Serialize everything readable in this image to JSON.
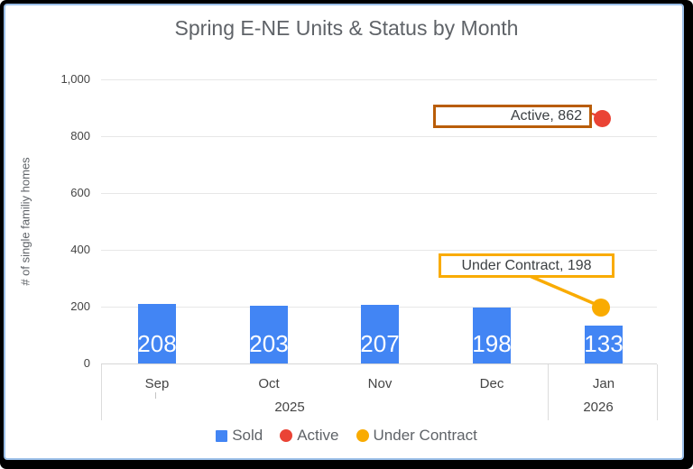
{
  "chart_data": {
    "type": "combo",
    "title": "Spring E-NE Units & Status by Month",
    "ylabel": "# of single familiy homes",
    "ylim": [
      0,
      1000
    ],
    "grid": true,
    "ytick_labels": [
      "1,000",
      "800",
      "600",
      "400",
      "200",
      "0"
    ],
    "categories": [
      "Sep",
      "Oct",
      "Nov",
      "Dec",
      "Jan"
    ],
    "year_labels": [
      "2025",
      "2026"
    ],
    "series": [
      {
        "name": "Sold",
        "type": "bar",
        "color": "#4285f4",
        "values": [
          208,
          203,
          207,
          198,
          133
        ]
      },
      {
        "name": "Active",
        "type": "point",
        "color": "#ea4335",
        "values": [
          null,
          null,
          null,
          null,
          862
        ]
      },
      {
        "name": "Under Contract",
        "type": "point",
        "color": "#f9ab00",
        "values": [
          null,
          null,
          null,
          null,
          198
        ]
      }
    ],
    "bar_labels": [
      "208",
      "203",
      "207",
      "198",
      "133"
    ],
    "annotations": [
      {
        "text": "Active, 862",
        "border_color": "#b95d08"
      },
      {
        "text": "Under Contract, 198",
        "border_color": "#f9ab00"
      }
    ],
    "legend": {
      "position": "bottom",
      "entries": [
        {
          "label": "Sold",
          "color": "#4285f4",
          "shape": "square"
        },
        {
          "label": "Active",
          "color": "#ea4335",
          "shape": "circle"
        },
        {
          "label": "Under Contract",
          "color": "#f9ab00",
          "shape": "circle"
        }
      ]
    }
  },
  "colors": {
    "bar_blue": "#4285f4",
    "point_red": "#ea4335",
    "point_gold": "#f9ab00",
    "annotation_orange": "#b95d08",
    "gridline": "#e7e7e7",
    "title_gray": "#5f6368",
    "tick_gray": "#444444",
    "frame_black": "#000000",
    "frame_blue": "#9bbfe8",
    "bar_label_white": "#ffffff"
  }
}
